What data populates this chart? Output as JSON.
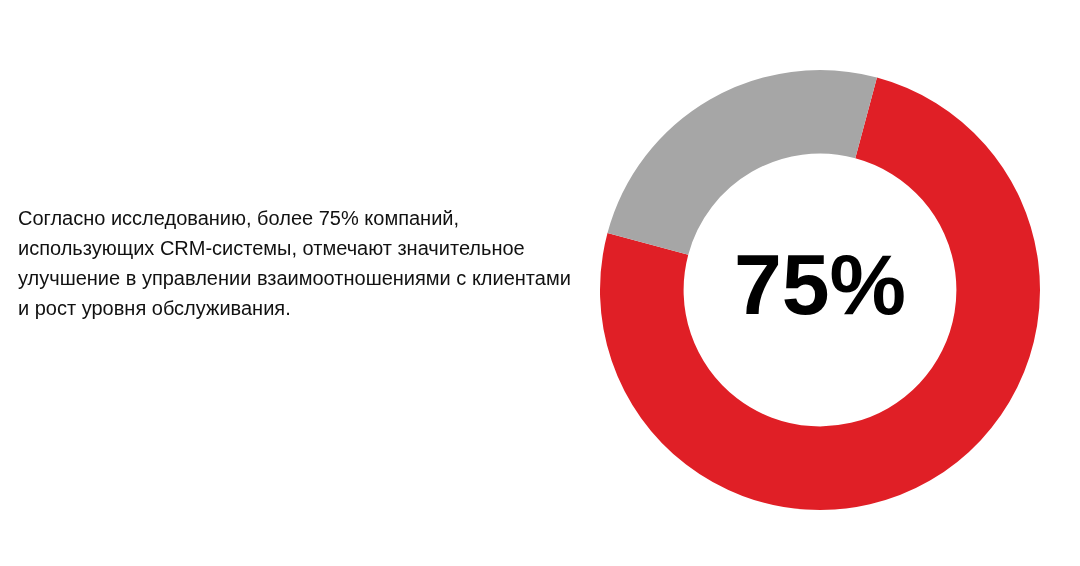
{
  "chart_data": {
    "type": "donut",
    "categories": [
      null,
      null
    ],
    "values": [
      75,
      25
    ],
    "colors": [
      "#e01f26",
      "#a6a6a6"
    ],
    "value_labels": [
      "75%",
      null
    ],
    "legend": false,
    "annotations": [
      "Согласно исследованию, более 75% компаний, использующих CRM-системы, отмечают значительное улучшение в управлении взаимоотношениями с клиентами и рост уровня обслуживания."
    ]
  }
}
